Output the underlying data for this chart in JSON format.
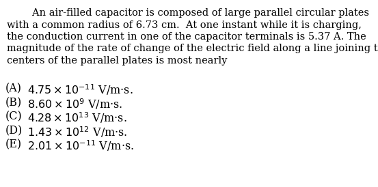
{
  "background_color": "#ffffff",
  "text_color": "#000000",
  "font_family": "DejaVu Serif",
  "font_size_body": 10.5,
  "font_size_choices": 11.5,
  "fig_width": 5.53,
  "fig_height": 2.74,
  "dpi": 100,
  "paragraph_lines": [
    "        An air-filled capacitor is composed of large parallel circular plates",
    "with a common radius of 6.73 cm.  At one instant while it is charging,",
    "the conduction current in one of the capacitor terminals is 5.37 A. The",
    "magnitude of the rate of change of the electric field along a line joining the",
    "centers of the parallel plates is most nearly"
  ],
  "choices": [
    {
      "label": "(A)",
      "mathtext": "$4.75 \\times 10^{-11}$ V/m·s."
    },
    {
      "label": "(B)",
      "mathtext": "$8.60 \\times 10^{9}$ V/m·s."
    },
    {
      "label": "(C)",
      "mathtext": "$4.28 \\times 10^{13}$ V/m·s."
    },
    {
      "label": "(D)",
      "mathtext": "$1.43 \\times 10^{12}$ V/m·s."
    },
    {
      "label": "(E)",
      "mathtext": "$2.01 \\times 10^{-11}$ V/m·s."
    }
  ]
}
